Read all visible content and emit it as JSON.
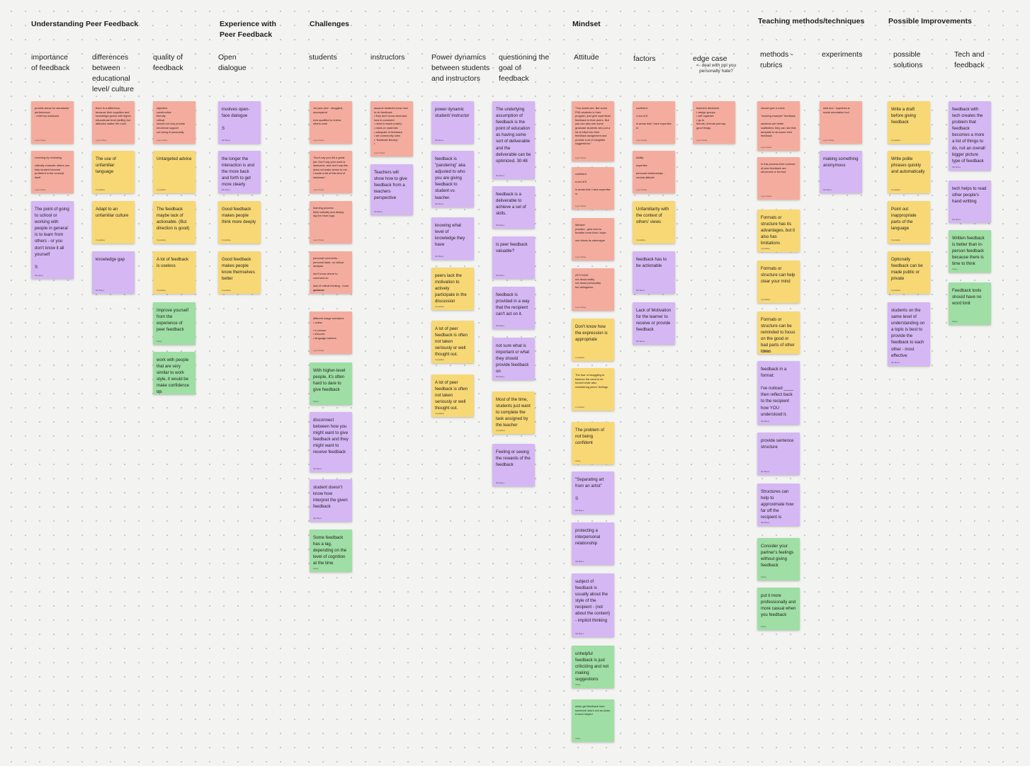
{
  "sections": [
    {
      "id": "understanding",
      "title": "Understanding Peer Feedback"
    },
    {
      "id": "experience",
      "title": "Experience with\nPeer Feedback"
    },
    {
      "id": "challenges",
      "title": "Challenges"
    },
    {
      "id": "mindset",
      "title": "Mindset"
    },
    {
      "id": "teaching",
      "title": "Teaching methods/techniques"
    },
    {
      "id": "improvements",
      "title": "Possible Improvements"
    }
  ],
  "columns": [
    {
      "id": "importance",
      "label": "importance\nof feedback"
    },
    {
      "id": "differences",
      "label": "differences\nbetween\neducational\nlevel/ culture"
    },
    {
      "id": "quality",
      "label": "quality of\nfeedback"
    },
    {
      "id": "open",
      "label": "Open\ndialogue"
    },
    {
      "id": "students",
      "label": "students"
    },
    {
      "id": "instructors",
      "label": "instructors"
    },
    {
      "id": "power",
      "label": "Power dynamics\nbetween students\nand instructors"
    },
    {
      "id": "questioning",
      "label": "questioning the\ngoal of\nfeedback"
    },
    {
      "id": "attitude",
      "label": "Attitude"
    },
    {
      "id": "factors",
      "label": "factors"
    },
    {
      "id": "edge",
      "label": "edge case",
      "sub": "<- deal with ppl you\npersonally hate?"
    },
    {
      "id": "methods",
      "label": "methods -\nrubrics"
    },
    {
      "id": "experiments",
      "label": "experiments"
    },
    {
      "id": "solutions",
      "label": "possible\nsolutions"
    },
    {
      "id": "tech",
      "label": "Tech and\nfeedback"
    }
  ],
  "notes": {
    "importance": [
      {
        "color": "pink",
        "small": true,
        "text": "provide areas for standards/ performance\n- relief my workload",
        "author": "Lysel Tishas"
      },
      {
        "color": "pink",
        "small": true,
        "text": "Learning by reviewing\n\ncritically evaluate others can help student become proficient in the concept itself",
        "author": "Lysel Tishas"
      },
      {
        "color": "purple",
        "text": "The point of going to school or working with people in general is to learn from others - or you don't know it all yourself\n\nS",
        "author": "Nik Bravo"
      }
    ],
    "differences": [
      {
        "color": "pink",
        "small": true,
        "text": "there is a difference, because their cognitive and knowledge grows with higher educational level (ability) but attitudes matter the most",
        "author": "Lysel Tishas"
      },
      {
        "color": "yellow",
        "text": "The use of unfamiliar language",
        "author": "Crystalline"
      },
      {
        "color": "yellow",
        "text": "Adapt to an unfamiliar culture",
        "author": "Crystalline"
      },
      {
        "color": "purple",
        "text": "knowledge gap",
        "author": "Nik Bravo"
      }
    ],
    "quality": [
      {
        "color": "pink",
        "small": true,
        "text": "objective\nconstructive\nfriendly\ncritical\nshould not only provide emotional support\nnot being ill personally",
        "author": "Lysel Tishas"
      },
      {
        "color": "yellow",
        "text": "Untargeted advice",
        "author": "Crystalline"
      },
      {
        "color": "yellow",
        "text": "The feedback maybe lack of actionable. (But direction is good)",
        "author": "Crystalline"
      },
      {
        "color": "yellow",
        "text": "A lot of feedback is useless",
        "author": "Crystalline"
      },
      {
        "color": "green",
        "text": "Improve yourself from the experience of peer feedback",
        "author": "Velmy"
      },
      {
        "color": "green",
        "text": "work with people that are very similar to work style, it would be make confidence up.",
        "author": "Velmy"
      }
    ],
    "open": [
      {
        "color": "purple",
        "text": "involves open-face dialogue\n\nS",
        "author": "Nik Bravo"
      },
      {
        "color": "purple",
        "text": "the longer the interaction is and the more back and forth to get more clearly",
        "author": "Nik Bravo"
      },
      {
        "color": "yellow",
        "text": "Good feedback makes people think more deeply",
        "author": "Crystalline"
      },
      {
        "color": "yellow",
        "text": "Good feedback makes people know themselves better",
        "author": "Crystalline"
      }
    ],
    "students": [
      {
        "color": "pink",
        "small": true,
        "text": "1st year phd - struggled, unprepared\n\nnow qualified to review others work",
        "author": "Lysel Tishas"
      },
      {
        "color": "pink",
        "small": true,
        "text": "\"Don't say you did a great job. Don't say your work is awesome, and don't say this does not make sense to me. I made a list of this kind of database.\"",
        "author": "Lysel Tishas"
      },
      {
        "color": "pink",
        "small": true,
        "text": "learning process\nthink critically and deeply\ndig the inner logic",
        "author": "Lysel Tishas"
      },
      {
        "color": "pink",
        "small": true,
        "text": "personal comments - personal taste, no critical analysis\n\ndon't know where to comment on\n\nlack of critical thinking - most guidance",
        "author": "Lysel Tishas"
      },
      {
        "color": "pink",
        "small": true,
        "text": "different usage scenarios\n  • online\n\n  • in person\n     • introvert\n     • language barriers",
        "author": "Lysel Tishas"
      },
      {
        "color": "green",
        "text": "With higher-level people, it's often hard to dare to give feedback",
        "author": "Velmy"
      },
      {
        "color": "purple",
        "text": "disconnect between how you might want to give feedback and they might want to receive feedback",
        "author": "Nik Bravo"
      },
      {
        "color": "purple",
        "text": "student doesn't know how interpret the given feedback",
        "author": "Nik Bravo"
      },
      {
        "color": "green",
        "text": "Some feedback has a lag, depending on the level of cognition at the time",
        "author": "Velmy"
      }
    ],
    "instructors": [
      {
        "color": "pink",
        "small": true,
        "text": "assume students know how to do feedback\n  • they don't know what and how to comment\n  • need to teach (rubric)\n  • hand-on materials\n  • adequate of feedback\n  • set community rules\n  • \"feedback literacy\"\n  •",
        "author": "Lysel Tishas"
      },
      {
        "color": "purple",
        "text": "Teachers will show how to give feedback from a teachers perspective",
        "author": "Nik Bravo"
      }
    ],
    "power": [
      {
        "color": "purple",
        "text": "power dynamic student/ instructor",
        "author": "Nik Bravo"
      },
      {
        "color": "purple",
        "text": "feedback is \"pandering\" aka adjusted to who you are giving feedback to student vs teacher.",
        "author": "Nik Bravo"
      },
      {
        "color": "purple",
        "text": "knowing what level of knowledge they have",
        "author": "Nik Bravo"
      },
      {
        "color": "yellow",
        "text": "peers lack the motivation to actively participate in the discussion",
        "author": "Crystalline"
      },
      {
        "color": "yellow",
        "text": "A lot of peer feedback is often not taken seriously or well thought out.",
        "author": "Crystalline"
      },
      {
        "color": "yellow",
        "text": "A lot of peer feedback is often not taken seriously or well thought out.",
        "author": "Crystalline"
      }
    ],
    "questioning": [
      {
        "color": "purple",
        "text": "The underlying assumption of feedback is the point of education as having some sort of deliverable and the deliverable can be optimized. 30:48",
        "author": "Nik Bravo"
      },
      {
        "color": "purple",
        "text": "feedback is a deliverable to achieve a set of skills.",
        "author": "Nik Bravo"
      },
      {
        "color": "purple",
        "text": "is peer feedback valuable?",
        "author": "Nik Bravo"
      },
      {
        "color": "purple",
        "text": "feedback is provided in a way that the recipient can't act on it.",
        "author": "Nik Bravo"
      },
      {
        "color": "purple",
        "text": "not sure what is important or what they should provide feedback on",
        "author": "Nik Bravo"
      },
      {
        "color": "yellow",
        "text": "Most of the time, students just want to complete the task assigned by the teacher",
        "author": "Crystalline"
      },
      {
        "color": "purple",
        "text": "Feeling or seeing the rewards of the feedback",
        "author": "Nik Bravo"
      }
    ],
    "attitude": [
      {
        "color": "pink",
        "small": true,
        "text": "\"You would see, like some PhD students in their program, just give superficial feedback to their peers. But you can also see some graduate students who put a lot of effort into their feedback assignment and provide a lot of insightful suggestions.\"",
        "author": "Lysel Tishas"
      },
      {
        "color": "pink",
        "small": true,
        "text": "confident\n\na out of 5\n\nin areas that i have expertise in",
        "author": "Lysel Tishas"
      },
      {
        "color": "pink",
        "small": true,
        "text": "Mindset\npractice - give best to breathe more than i hope\n\none thinks its stereotype",
        "author": "Lysel Tishas"
      },
      {
        "color": "pink",
        "small": true,
        "text": "ATTITUDE\nnot about ability\nnot about personality\nbut willingness",
        "author": "Lysel Tishas"
      },
      {
        "color": "yellow",
        "text": "Don't know how the expression is appropriate",
        "author": "Crystalline"
      },
      {
        "color": "yellow",
        "small": true,
        "text": "The fear of struggling to balance the need to be honest while also considering peers' feelings.",
        "author": "Crystalline"
      },
      {
        "color": "yellow",
        "text": "The problem of not being confident",
        "author": "Velmy"
      },
      {
        "color": "purple",
        "text": "\"Separating art from an artist\"\n\nS",
        "author": "Nik Bravo"
      },
      {
        "color": "purple",
        "text": "protecting a interpersonal relationship",
        "author": "Nik Bravo"
      },
      {
        "color": "purple",
        "text": "subject of feedback is usually about the style of the recipient - (not about the content) - implicit thinking",
        "author": "Nik Bravo"
      },
      {
        "color": "green",
        "text": "unhelpful feedback is just criticizing and not making suggestions",
        "author": "Velmy"
      },
      {
        "color": "green",
        "small": true,
        "text": "when get feedback from someone who's not as close, it more helpful",
        "author": "Velmy"
      }
    ],
    "factors": [
      {
        "color": "pink",
        "small": true,
        "text": "confident\n\n4 out of 5\n\nin areas that i have expertise in",
        "author": "Lysel Tishas"
      },
      {
        "color": "pink",
        "small": true,
        "text": "Ability\n\nexpertise\n\npersonal relationships - neutral attitude",
        "author": "Lysel Tishas"
      },
      {
        "color": "yellow",
        "text": "Unfamiliarity with the context of others' views",
        "author": "Crystalline"
      },
      {
        "color": "purple",
        "text": "feedback has to be actionable",
        "author": "Nik Bravo"
      },
      {
        "color": "purple",
        "text": "Lack of Motivation for the learner to receive or provide feedback",
        "author": "Nik Bravo"
      }
    ],
    "edge": [
      {
        "color": "pink",
        "small": true,
        "text": "teachers decisions\n  • assign groups\n  • self organize\n     • go to\n        friends->friends just say good things",
        "author": "Lysel Tishas"
      }
    ],
    "methods": [
      {
        "color": "pink",
        "small": true,
        "text": "should give a rubric\n\n\"working example\" feedback\n\nstudents are better scaffolded, they can use that template to structure their feedback",
        "author": "Lysel Tishas"
      },
      {
        "color": "pink",
        "small": true,
        "text": "In this process their scheme of peer feedback are structured or formed",
        "author": "Lysel Tishas"
      },
      {
        "color": "yellow",
        "text": "Formats or structure has its advantages, but it also has limitations",
        "author": "Crystalline"
      },
      {
        "color": "yellow",
        "text": "Formats or structure can help clear your mind",
        "author": "Crystalline"
      },
      {
        "color": "yellow",
        "text": "Formats or structure can be reminded to focus on the good or bad parts of other ideas",
        "author": "Crystalline"
      },
      {
        "color": "purple",
        "text": "feedback in a format:\n\nI've noticed ____ then reflect back to the recipient how YOU understood it.",
        "author": "Nik Bravo"
      },
      {
        "color": "purple",
        "text": "provide sentence structure",
        "author": "Nik Bravo"
      },
      {
        "color": "purple",
        "text": "Structures can help to approximate how far off the recipient is",
        "author": "Nik Bravo"
      },
      {
        "color": "green",
        "text": "Consider your partner's feelings without giving feedback",
        "author": "Velmy"
      },
      {
        "color": "green",
        "text": "put it more professionally and more casual when you feedback",
        "author": "Velmy"
      }
    ],
    "experiments": [
      {
        "color": "pink",
        "small": true,
        "text": "web tool - hypothes.is\nsocial annotation tool",
        "author": "Lysel Tishas"
      },
      {
        "color": "purple",
        "text": "making something anonymous",
        "author": "Nik Bravo"
      }
    ],
    "solutions": [
      {
        "color": "yellow",
        "text": "Write a draft before giving feedback",
        "author": "Crystalline"
      },
      {
        "color": "yellow",
        "text": "Write polite phrases quickly and automatically",
        "author": "Crystalline"
      },
      {
        "color": "yellow",
        "text": "Point out inappropriate parts of the language",
        "author": "Crystalline"
      },
      {
        "color": "yellow",
        "text": "Optionally feedback can be made public or private",
        "author": "Crystalline"
      },
      {
        "color": "purple",
        "text": "students on the same level of understanding on a topic is best to provide the feedback to each other - most effective",
        "author": "Nik Bravo"
      }
    ],
    "tech": [
      {
        "color": "purple",
        "text": "feedback with tech creates the problem that feedback becomes a more a list of things to do, not an overall bigger picture type of feedback",
        "author": "Nik Bravo"
      },
      {
        "color": "purple",
        "text": "tech helps to read other people's hand writting",
        "author": "Nik Bravo"
      },
      {
        "color": "green",
        "text": "Written feedback is better than in-person feedback because there is time to think",
        "author": "Velmy"
      },
      {
        "color": "green",
        "text": "Feedback tools should have no word limit",
        "author": "Velmy"
      }
    ]
  }
}
